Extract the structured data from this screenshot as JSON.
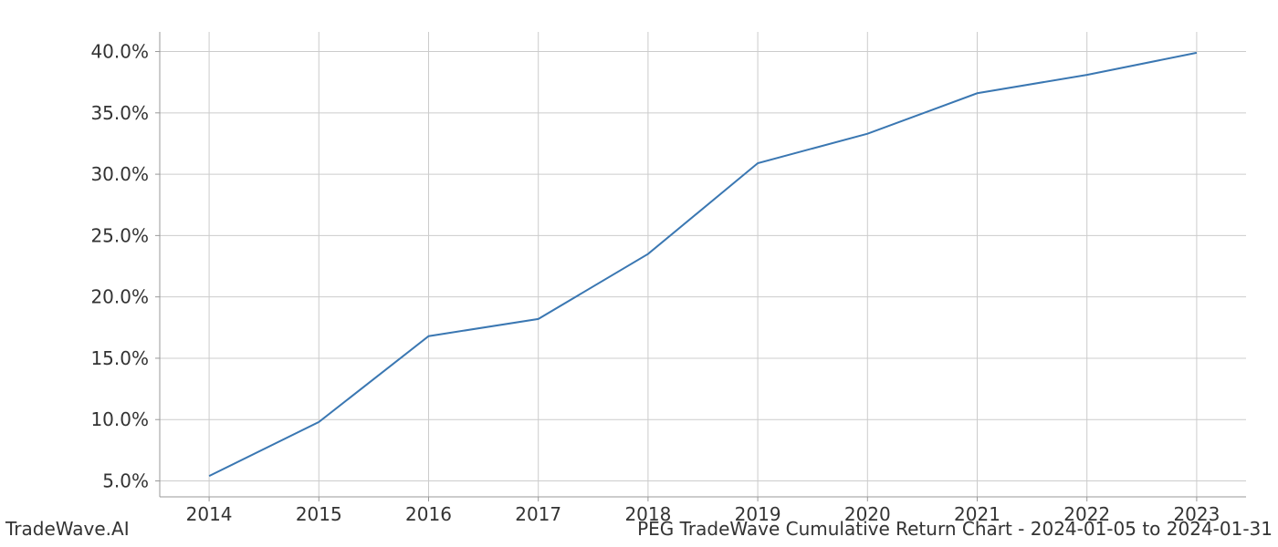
{
  "chart": {
    "type": "line",
    "background_color": "#ffffff",
    "plot_background": "#ffffff",
    "grid_color": "#cccccc",
    "spine_color": "#999999",
    "tick_color": "#333333",
    "tick_fontsize": 20,
    "line_color": "#3a77b2",
    "line_width": 2,
    "x": {
      "ticks": [
        2014,
        2015,
        2016,
        2017,
        2018,
        2019,
        2020,
        2021,
        2022,
        2023
      ],
      "lim_min": 2013.55,
      "lim_max": 2023.45
    },
    "y": {
      "ticks": [
        5.0,
        10.0,
        15.0,
        20.0,
        25.0,
        30.0,
        35.0,
        40.0
      ],
      "tick_labels": [
        "5.0%",
        "10.0%",
        "15.0%",
        "20.0%",
        "25.0%",
        "30.0%",
        "35.0%",
        "40.0%"
      ],
      "lim_min": 3.7,
      "lim_max": 41.6
    },
    "series": {
      "x": [
        2014,
        2015,
        2016,
        2017,
        2018,
        2019,
        2020,
        2021,
        2022,
        2023
      ],
      "y": [
        5.4,
        9.8,
        16.8,
        18.2,
        23.5,
        30.9,
        33.3,
        36.6,
        38.1,
        39.9
      ]
    }
  },
  "footer": {
    "left": "TradeWave.AI",
    "right": "PEG TradeWave Cumulative Return Chart - 2024-01-05 to 2024-01-31"
  }
}
